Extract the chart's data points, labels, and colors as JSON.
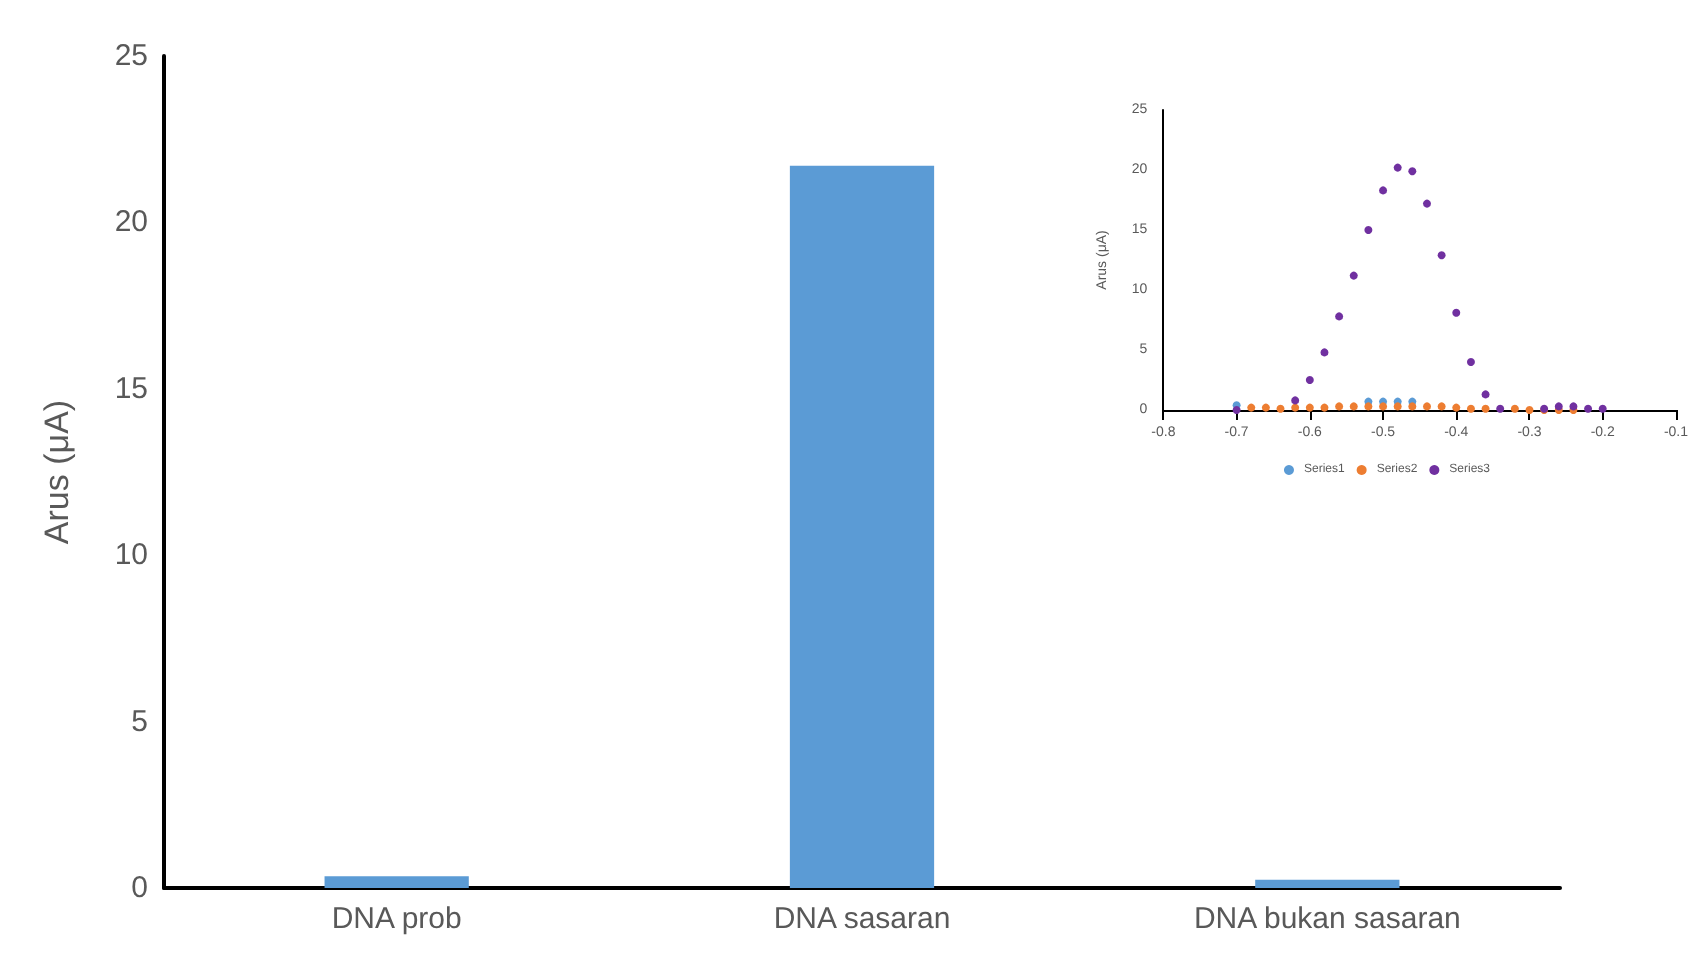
{
  "chart_data": [
    {
      "type": "bar",
      "ylabel": "Arus (μA)",
      "categories": [
        "DNA prob",
        "DNA sasaran",
        "DNA bukan sasaran"
      ],
      "values": [
        0.35,
        21.7,
        0.25
      ],
      "color": "#5b9bd5",
      "ylim": [
        0,
        25
      ],
      "yticks": [
        0,
        5,
        10,
        15,
        20,
        25
      ],
      "grid": false
    },
    {
      "type": "scatter",
      "ylabel": "Arus (μA)",
      "marker": "circle",
      "legend": "bottom",
      "grid": false,
      "xlim": [
        -0.8,
        -0.1
      ],
      "xticks": [
        -0.8,
        -0.7,
        -0.6,
        -0.5,
        -0.4,
        -0.3,
        -0.2,
        -0.1
      ],
      "ylim": [
        0,
        25
      ],
      "yticks": [
        0,
        5,
        10,
        15,
        20,
        25
      ],
      "x": [
        -0.7,
        -0.68,
        -0.66,
        -0.64,
        -0.62,
        -0.6,
        -0.58,
        -0.56,
        -0.54,
        -0.52,
        -0.5,
        -0.48,
        -0.46,
        -0.44,
        -0.42,
        -0.4,
        -0.38,
        -0.36,
        -0.34,
        -0.32,
        -0.3,
        -0.28,
        -0.26,
        -0.24,
        -0.22,
        -0.2
      ],
      "series": [
        {
          "name": "Series1",
          "color": "#5b9bd5",
          "values": [
            0.4,
            null,
            null,
            null,
            null,
            null,
            null,
            null,
            null,
            0.7,
            0.7,
            0.7,
            0.7,
            null,
            null,
            null,
            null,
            null,
            null,
            null,
            null,
            null,
            null,
            null,
            null,
            null
          ]
        },
        {
          "name": "Series2",
          "color": "#ed7d31",
          "values": [
            null,
            0.2,
            0.2,
            0.1,
            0.2,
            0.2,
            0.2,
            0.3,
            0.3,
            0.3,
            0.3,
            0.3,
            0.3,
            0.3,
            0.3,
            0.2,
            0.1,
            0.1,
            null,
            0.1,
            0,
            0,
            0,
            0,
            null,
            null
          ]
        },
        {
          "name": "Series3",
          "color": "#7030a0",
          "values": [
            0,
            null,
            null,
            null,
            0.8,
            2.5,
            4.8,
            7.8,
            11.2,
            15,
            18.3,
            20.2,
            19.9,
            17.2,
            12.9,
            8.1,
            4,
            1.3,
            0.1,
            null,
            null,
            0.1,
            0.3,
            0.3,
            0.1,
            0.1
          ]
        }
      ]
    }
  ]
}
